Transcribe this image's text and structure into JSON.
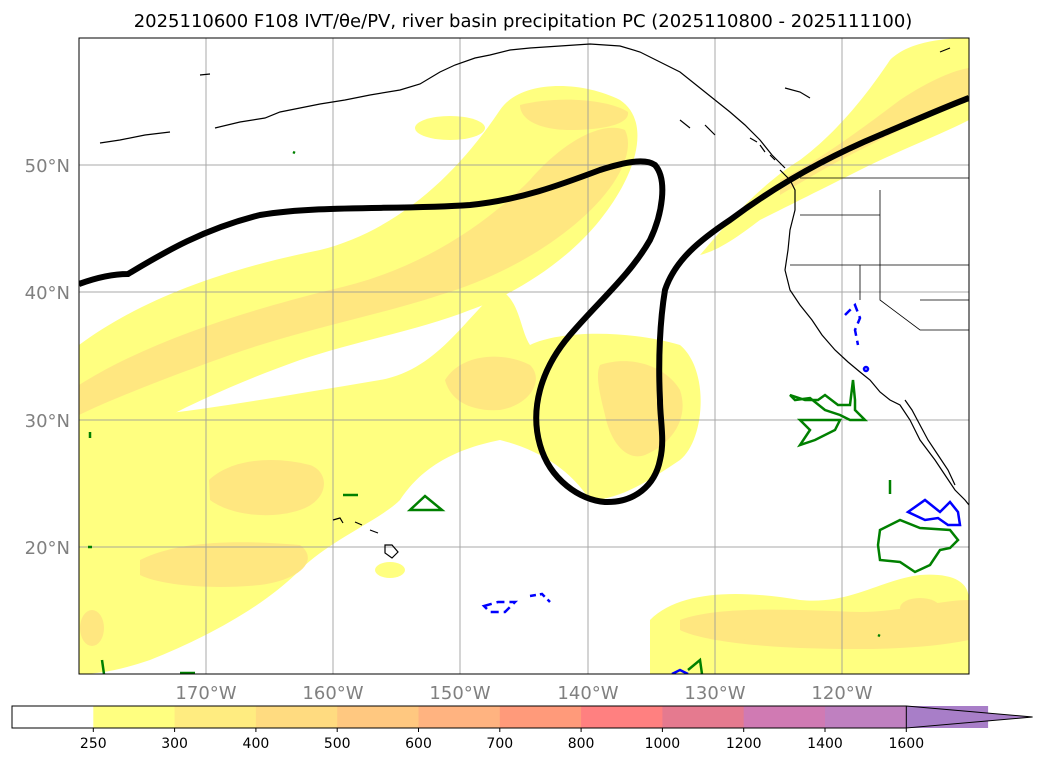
{
  "title": "2025110600 F108 IVT/θe/PV, river basin precipitation PC (2025110800 - 2025111100)",
  "lat_labels": [
    "50°N",
    "40°N",
    "30°N",
    "20°N"
  ],
  "lon_labels": [
    "170°W",
    "160°W",
    "150°W",
    "140°W",
    "130°W",
    "120°W"
  ],
  "colorbar": {
    "ticks": [
      "250",
      "300",
      "400",
      "500",
      "600",
      "700",
      "800",
      "1000",
      "1200",
      "1400",
      "1600"
    ],
    "colors": [
      "#ffffff",
      "#ffff80",
      "#ffec80",
      "#ffdb80",
      "#ffc880",
      "#ffb380",
      "#ff9a7a",
      "#ff8080",
      "#e57a8f",
      "#d07ab3",
      "#bf80c0",
      "#a87ec8"
    ]
  },
  "colors": {
    "ivt_low": "#ffff80",
    "ivt_mid": "#ffe680",
    "theta_contour": "#000000",
    "precip_green": "#008000",
    "precip_blue": "#0000ff"
  }
}
